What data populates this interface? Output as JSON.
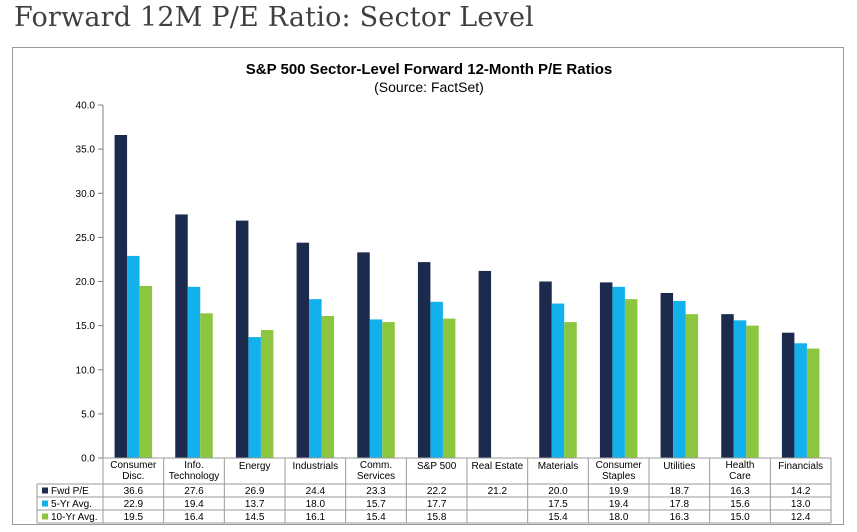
{
  "page": {
    "heading": "Forward 12M P/E Ratio: Sector Level"
  },
  "colors": {
    "fwd": "#1c2a4e",
    "avg5": "#13b1ec",
    "avg10": "#8cc63e",
    "grid": "#9a9a9a"
  },
  "chart_data": {
    "type": "bar",
    "title": "S&P 500 Sector-Level Forward 12-Month P/E Ratios",
    "subtitle": "(Source: FactSet)",
    "ylim": [
      0,
      40
    ],
    "yticks": [
      "0.0",
      "5.0",
      "10.0",
      "15.0",
      "20.0",
      "25.0",
      "30.0",
      "35.0",
      "40.0"
    ],
    "grid": false,
    "legend": "data-table-left",
    "categories": [
      [
        "Consumer",
        "Disc."
      ],
      [
        "Info.",
        "Technology"
      ],
      [
        "Energy"
      ],
      [
        "Industrials"
      ],
      [
        "Comm.",
        "Services"
      ],
      [
        "S&P 500"
      ],
      [
        "Real Estate"
      ],
      [
        "Materials"
      ],
      [
        "Consumer",
        "Staples"
      ],
      [
        "Utilities"
      ],
      [
        "Health",
        "Care"
      ],
      [
        "Financials"
      ]
    ],
    "series": [
      {
        "name": "Fwd P/E",
        "values": [
          36.6,
          27.6,
          26.9,
          24.4,
          23.3,
          22.2,
          21.2,
          20.0,
          19.9,
          18.7,
          16.3,
          14.2
        ],
        "labels": [
          "36.6",
          "27.6",
          "26.9",
          "24.4",
          "23.3",
          "22.2",
          "21.2",
          "20.0",
          "19.9",
          "18.7",
          "16.3",
          "14.2"
        ]
      },
      {
        "name": "5-Yr Avg.",
        "values": [
          22.9,
          19.4,
          13.7,
          18.0,
          15.7,
          17.7,
          null,
          17.5,
          19.4,
          17.8,
          15.6,
          13.0
        ],
        "labels": [
          "22.9",
          "19.4",
          "13.7",
          "18.0",
          "15.7",
          "17.7",
          "",
          "17.5",
          "19.4",
          "17.8",
          "15.6",
          "13.0"
        ]
      },
      {
        "name": "10-Yr Avg.",
        "values": [
          19.5,
          16.4,
          14.5,
          16.1,
          15.4,
          15.8,
          null,
          15.4,
          18.0,
          16.3,
          15.0,
          12.4
        ],
        "labels": [
          "19.5",
          "16.4",
          "14.5",
          "16.1",
          "15.4",
          "15.8",
          "",
          "15.4",
          "18.0",
          "16.3",
          "15.0",
          "12.4"
        ]
      }
    ]
  }
}
